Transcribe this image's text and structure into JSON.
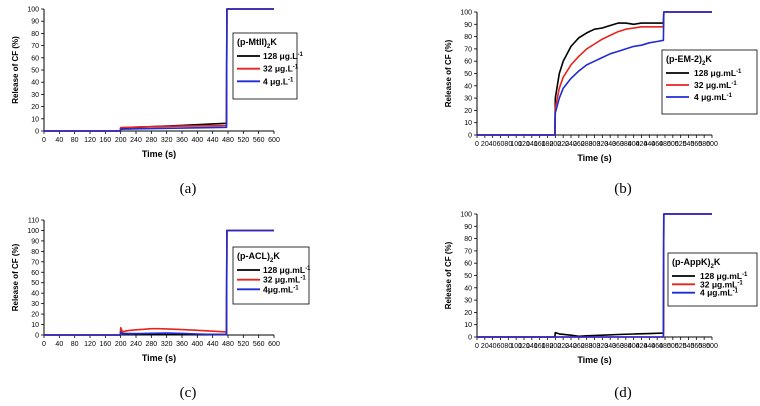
{
  "chart_data": [
    {
      "panel": "(a)",
      "type": "line",
      "title": "",
      "xlabel": "Time (s)",
      "ylabel": "Release of CF (%)",
      "xlim": [
        0,
        600
      ],
      "ylim": [
        0,
        100
      ],
      "xticks": [
        0,
        40,
        80,
        120,
        160,
        200,
        240,
        280,
        320,
        360,
        400,
        440,
        480,
        520,
        560,
        600
      ],
      "yticks": [
        0,
        10,
        20,
        30,
        40,
        50,
        60,
        70,
        80,
        90,
        100
      ],
      "legend": {
        "title_main": "(p-MtII)",
        "title_sub": "2",
        "title_tail": "K",
        "placement": "right",
        "entries": [
          "128 μg.L-1",
          "32 μg.L-1",
          "4 μg.L-1"
        ]
      },
      "series": [
        {
          "name": "128 μg.L-1",
          "color": "#000000",
          "x": [
            0,
            199,
            200,
            240,
            280,
            320,
            360,
            400,
            440,
            476,
            477,
            600
          ],
          "y": [
            0,
            0,
            2.5,
            3,
            3.5,
            4,
            4.6,
            5.2,
            5.8,
            6.3,
            100,
            100
          ]
        },
        {
          "name": "32 μg.L-1",
          "color": "#e8231e",
          "x": [
            0,
            199,
            200,
            240,
            280,
            320,
            360,
            400,
            440,
            476,
            477,
            600
          ],
          "y": [
            0,
            0,
            2.8,
            3.2,
            3.5,
            3.8,
            4.0,
            4.2,
            4.3,
            4.5,
            100,
            100
          ]
        },
        {
          "name": "4 μg.L-1",
          "color": "#1f2bd6",
          "x": [
            0,
            199,
            200,
            240,
            280,
            320,
            360,
            400,
            440,
            476,
            477,
            600
          ],
          "y": [
            0,
            0,
            1.5,
            1.8,
            2.0,
            2.2,
            2.4,
            2.6,
            2.8,
            3.0,
            100,
            100
          ]
        }
      ]
    },
    {
      "panel": "(b)",
      "type": "line",
      "title": "",
      "xlabel": "Time (s)",
      "ylabel": "Release of CF (%)",
      "xlim": [
        0,
        600
      ],
      "ylim": [
        0,
        100
      ],
      "xticks": [
        0,
        20,
        40,
        60,
        80,
        100,
        120,
        140,
        160,
        180,
        200,
        220,
        240,
        260,
        280,
        300,
        320,
        340,
        360,
        380,
        400,
        420,
        440,
        460,
        480,
        500,
        520,
        540,
        560,
        580,
        600
      ],
      "yticks": [
        0,
        10,
        20,
        30,
        40,
        50,
        60,
        70,
        80,
        90,
        100
      ],
      "legend": {
        "title_main": "(p-EM-2)",
        "title_sub": "2",
        "title_tail": "K",
        "placement": "right",
        "entries": [
          "128 μg.mL-1",
          "32 μg.mL-1",
          "4 μg.mL-1"
        ]
      },
      "series": [
        {
          "name": "128 μg.mL-1",
          "color": "#000000",
          "x": [
            0,
            199,
            200,
            210,
            220,
            240,
            260,
            280,
            300,
            320,
            340,
            360,
            380,
            400,
            420,
            440,
            460,
            476,
            477,
            600
          ],
          "y": [
            0,
            0,
            30,
            50,
            60,
            72,
            79,
            83,
            86,
            87,
            89,
            91,
            91,
            90,
            91,
            91,
            91,
            91,
            100,
            100
          ]
        },
        {
          "name": "32 μg.mL-1",
          "color": "#e8231e",
          "x": [
            0,
            199,
            200,
            210,
            220,
            240,
            260,
            280,
            300,
            320,
            340,
            360,
            380,
            400,
            420,
            440,
            460,
            476,
            477,
            600
          ],
          "y": [
            0,
            0,
            22,
            38,
            47,
            57,
            64,
            70,
            74,
            78,
            81,
            84,
            86,
            87,
            88,
            88,
            88,
            88,
            100,
            100
          ]
        },
        {
          "name": "4 μg.mL-1",
          "color": "#1f2bd6",
          "x": [
            0,
            199,
            200,
            210,
            220,
            240,
            260,
            280,
            300,
            320,
            340,
            360,
            380,
            400,
            420,
            440,
            460,
            476,
            477,
            600
          ],
          "y": [
            0,
            0,
            18,
            30,
            38,
            46,
            52,
            57,
            60,
            63,
            66,
            68,
            70,
            72,
            73,
            75,
            76,
            77,
            100,
            100
          ]
        }
      ]
    },
    {
      "panel": "(c)",
      "type": "line",
      "title": "",
      "xlabel": "Time (s)",
      "ylabel": "Release of CF (%)",
      "xlim": [
        0,
        600
      ],
      "ylim": [
        0,
        110
      ],
      "xticks": [
        0,
        40,
        80,
        120,
        160,
        200,
        240,
        280,
        320,
        360,
        400,
        440,
        480,
        520,
        560,
        600
      ],
      "yticks": [
        0,
        10,
        20,
        30,
        40,
        50,
        60,
        70,
        80,
        90,
        100,
        110
      ],
      "legend": {
        "title_main": "(p-ACL)",
        "title_sub": "2",
        "title_tail": "K",
        "placement": "right",
        "entries": [
          "128 μg.mL-1",
          "32 μg.mL-1",
          "4μg.mL-1"
        ]
      },
      "series": [
        {
          "name": "128 μg.mL-1",
          "color": "#000000",
          "x": [
            0,
            199,
            200,
            205,
            240,
            280,
            320,
            360,
            400,
            440,
            476,
            477,
            600
          ],
          "y": [
            0,
            0,
            2,
            1.5,
            1.2,
            1.0,
            0.9,
            0.8,
            0.7,
            0.6,
            0.5,
            100,
            100
          ]
        },
        {
          "name": "32 μg.mL-1",
          "color": "#e8231e",
          "x": [
            0,
            199,
            200,
            205,
            215,
            240,
            260,
            280,
            300,
            320,
            360,
            400,
            440,
            476,
            477,
            600
          ],
          "y": [
            0,
            0,
            7,
            3,
            4,
            5,
            5.5,
            6,
            6,
            5.8,
            5.2,
            4.5,
            3.6,
            3.0,
            100,
            100
          ]
        },
        {
          "name": "4μg.mL-1",
          "color": "#1f2bd6",
          "x": [
            0,
            199,
            200,
            205,
            240,
            280,
            320,
            360,
            400,
            440,
            476,
            477,
            600
          ],
          "y": [
            0,
            0,
            3,
            1,
            1.2,
            1.6,
            1.8,
            1.5,
            1.0,
            0.6,
            0.5,
            100,
            100
          ]
        }
      ]
    },
    {
      "panel": "(d)",
      "type": "line",
      "title": "",
      "xlabel": "Time (s)",
      "ylabel": "Release of CF (%)",
      "xlim": [
        0,
        600
      ],
      "ylim": [
        0,
        100
      ],
      "xticks": [
        0,
        20,
        40,
        60,
        80,
        100,
        120,
        140,
        160,
        180,
        200,
        220,
        240,
        260,
        280,
        300,
        320,
        340,
        360,
        380,
        400,
        420,
        440,
        460,
        480,
        500,
        520,
        540,
        560,
        580,
        600
      ],
      "yticks": [
        0,
        10,
        20,
        30,
        40,
        50,
        60,
        70,
        80,
        90,
        100
      ],
      "legend": {
        "title_main": "(p-AppK)",
        "title_sub": "2",
        "title_tail": "K",
        "placement": "right",
        "entries": [
          "128 μg.mL-1",
          "32 μg.mL-1",
          "4 μg.mL-1"
        ]
      },
      "series": [
        {
          "name": "128 μg.mL-1",
          "color": "#000000",
          "x": [
            0,
            199,
            200,
            210,
            240,
            260,
            280,
            320,
            360,
            400,
            440,
            476,
            477,
            600
          ],
          "y": [
            0,
            0,
            3.5,
            2.5,
            1.5,
            0.6,
            1.0,
            1.5,
            2.0,
            2.4,
            2.8,
            3.2,
            100,
            100
          ]
        },
        {
          "name": "32 μg.mL-1",
          "color": "#e8231e",
          "x": [
            0,
            476,
            477,
            600
          ],
          "y": [
            0,
            0,
            100,
            100
          ]
        },
        {
          "name": "4 μg.mL-1",
          "color": "#1f2bd6",
          "x": [
            0,
            476,
            477,
            600
          ],
          "y": [
            0,
            0,
            100,
            100
          ]
        }
      ]
    }
  ]
}
